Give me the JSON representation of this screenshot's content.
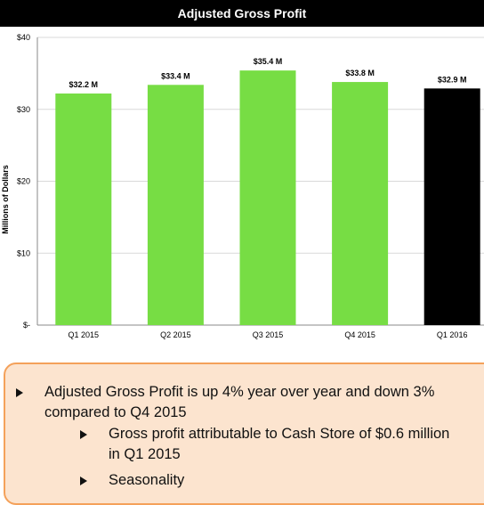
{
  "chart_data": {
    "type": "bar",
    "title": "Adjusted Gross Profit",
    "ylabel": "Millions of Dollars",
    "xlabel": "",
    "categories": [
      "Q1 2015",
      "Q2 2015",
      "Q3 2015",
      "Q4 2015",
      "Q1 2016"
    ],
    "values": [
      32.2,
      33.4,
      35.4,
      33.8,
      32.9
    ],
    "data_labels": [
      "$32.2 M",
      "$33.4 M",
      "$35.4 M",
      "$33.8 M",
      "$32.9 M"
    ],
    "bar_colors": [
      "#77dd44",
      "#77dd44",
      "#77dd44",
      "#77dd44",
      "#000000"
    ],
    "ylim": [
      0,
      40
    ],
    "yticks": [
      0,
      10,
      20,
      30,
      40
    ],
    "ytick_labels": [
      "$-",
      "$10",
      "$20",
      "$30",
      "$40"
    ],
    "grid": true,
    "legend": "none"
  },
  "notes": {
    "line1a": "Adjusted Gross Profit is up 4% year over year and down 3%",
    "line1b": "compared to Q4 2015",
    "line2a": "Gross profit attributable to Cash Store of $0.6 million",
    "line2b": "in Q1 2015",
    "line3": "Seasonality"
  },
  "colors": {
    "title_bg": "#000000",
    "highlight_bar": "#000000",
    "bar": "#77dd44",
    "notes_bg": "#fce4cf",
    "notes_border": "#f4a15a"
  }
}
